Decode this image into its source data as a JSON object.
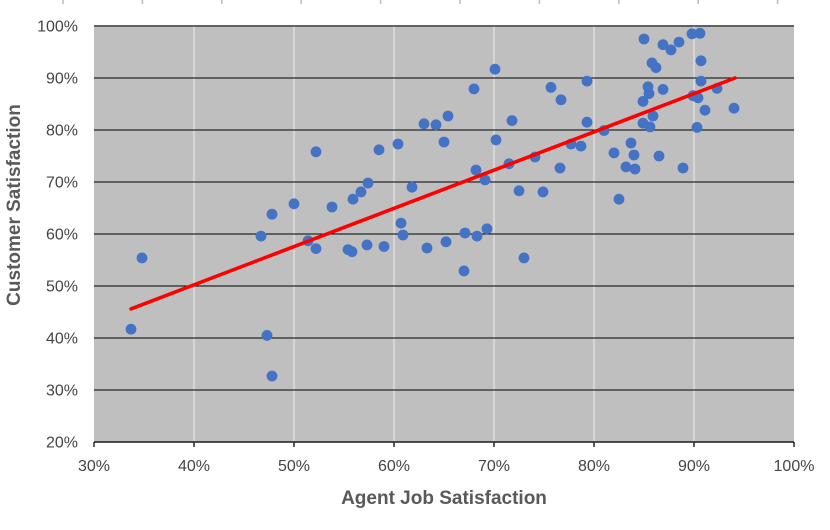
{
  "chart_data": {
    "type": "scatter",
    "title": "",
    "xlabel": "Agent Job Satisfaction",
    "ylabel": "Customer Satisfaction",
    "xlim": [
      30,
      100
    ],
    "ylim": [
      20,
      100
    ],
    "x_tick_values": [
      30,
      40,
      50,
      60,
      70,
      80,
      90,
      100
    ],
    "x_ticks": [
      "30%",
      "40%",
      "50%",
      "60%",
      "70%",
      "80%",
      "90%",
      "100%"
    ],
    "y_tick_values": [
      20,
      30,
      40,
      50,
      60,
      70,
      80,
      90,
      100
    ],
    "y_ticks": [
      "20%",
      "30%",
      "40%",
      "50%",
      "60%",
      "70%",
      "80%",
      "90%",
      "100%"
    ],
    "grid": {
      "horizontal": true,
      "vertical": true
    },
    "legend": "none",
    "style": {
      "plot_bg": "#BFBFBF",
      "h_grid": "#000000",
      "v_grid": "#DCDCDC",
      "axis": "#1a1a1a",
      "point": "#4472C4",
      "ruler_tick": "#BFBFBF"
    },
    "trendline": {
      "color": "#FF0000",
      "x1": 33.7,
      "y1": 45.6,
      "x2": 94.1,
      "y2": 90.0
    },
    "points": [
      [
        33.7,
        41.7
      ],
      [
        34.8,
        55.4
      ],
      [
        46.7,
        59.6
      ],
      [
        47.3,
        40.5
      ],
      [
        47.8,
        32.7
      ],
      [
        47.8,
        63.8
      ],
      [
        50.0,
        65.8
      ],
      [
        51.4,
        58.7
      ],
      [
        52.2,
        57.2
      ],
      [
        52.2,
        75.8
      ],
      [
        53.8,
        65.2
      ],
      [
        55.4,
        57.0
      ],
      [
        55.8,
        56.6
      ],
      [
        55.9,
        66.7
      ],
      [
        56.7,
        68.1
      ],
      [
        57.3,
        57.9
      ],
      [
        57.4,
        69.8
      ],
      [
        58.5,
        76.2
      ],
      [
        59.0,
        57.6
      ],
      [
        60.4,
        77.3
      ],
      [
        60.7,
        62.1
      ],
      [
        60.9,
        59.8
      ],
      [
        61.8,
        69.0
      ],
      [
        63.0,
        81.2
      ],
      [
        63.3,
        57.3
      ],
      [
        64.2,
        81.0
      ],
      [
        65.0,
        77.7
      ],
      [
        65.2,
        58.5
      ],
      [
        65.4,
        82.7
      ],
      [
        67.0,
        52.9
      ],
      [
        67.1,
        60.2
      ],
      [
        68.0,
        87.9
      ],
      [
        68.2,
        72.3
      ],
      [
        68.3,
        59.6
      ],
      [
        69.1,
        70.4
      ],
      [
        69.3,
        61.0
      ],
      [
        70.1,
        91.7
      ],
      [
        70.2,
        78.1
      ],
      [
        71.5,
        73.5
      ],
      [
        71.8,
        81.8
      ],
      [
        72.5,
        68.3
      ],
      [
        73.0,
        55.4
      ],
      [
        74.1,
        74.8
      ],
      [
        74.9,
        68.1
      ],
      [
        75.7,
        88.2
      ],
      [
        76.6,
        72.7
      ],
      [
        76.7,
        85.8
      ],
      [
        77.7,
        77.3
      ],
      [
        78.7,
        76.9
      ],
      [
        79.3,
        89.4
      ],
      [
        79.3,
        81.5
      ],
      [
        81.0,
        79.9
      ],
      [
        82.0,
        75.6
      ],
      [
        82.5,
        66.7
      ],
      [
        83.2,
        72.9
      ],
      [
        83.7,
        77.5
      ],
      [
        84.0,
        75.2
      ],
      [
        84.1,
        72.5
      ],
      [
        84.9,
        85.5
      ],
      [
        84.9,
        81.3
      ],
      [
        85.0,
        97.5
      ],
      [
        85.4,
        88.3
      ],
      [
        85.5,
        87.0
      ],
      [
        85.6,
        80.6
      ],
      [
        85.8,
        92.9
      ],
      [
        86.2,
        92.0
      ],
      [
        85.9,
        82.7
      ],
      [
        86.5,
        75.0
      ],
      [
        86.9,
        96.4
      ],
      [
        86.9,
        87.8
      ],
      [
        87.7,
        95.4
      ],
      [
        88.5,
        96.9
      ],
      [
        88.9,
        72.7
      ],
      [
        89.8,
        98.5
      ],
      [
        90.6,
        98.6
      ],
      [
        89.9,
        86.6
      ],
      [
        90.4,
        86.2
      ],
      [
        90.3,
        80.5
      ],
      [
        90.7,
        93.3
      ],
      [
        90.7,
        89.4
      ],
      [
        91.1,
        83.8
      ],
      [
        92.3,
        88.0
      ],
      [
        94.0,
        84.2
      ]
    ]
  }
}
